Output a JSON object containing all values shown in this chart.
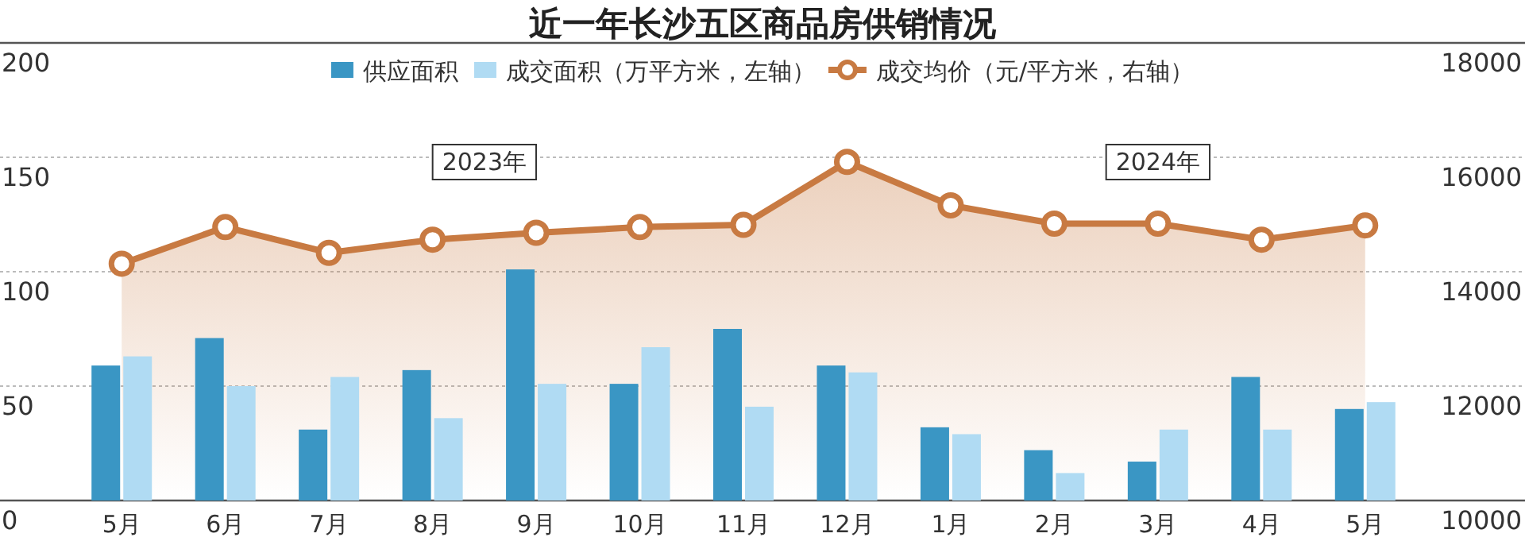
{
  "chart_data": {
    "type": "bar",
    "title": "近一年长沙五区商品房供销情况",
    "categories": [
      "5月",
      "6月",
      "7月",
      "8月",
      "9月",
      "10月",
      "11月",
      "12月",
      "1月",
      "2月",
      "3月",
      "4月",
      "5月"
    ],
    "series": [
      {
        "name": "供应面积",
        "color": "#3a96c4",
        "values": [
          59,
          71,
          31,
          57,
          101,
          51,
          75,
          59,
          32,
          22,
          17,
          54,
          40
        ]
      },
      {
        "name": "成交面积（万平方米，左轴）",
        "color": "#b0dbf3",
        "values": [
          63,
          50,
          54,
          36,
          51,
          67,
          41,
          56,
          29,
          12,
          31,
          31,
          43
        ]
      },
      {
        "name": "成交均价（元/平方米，右轴）",
        "type": "area",
        "axis": "y2",
        "color": "#c87a42",
        "values": [
          14140,
          14780,
          14330,
          14560,
          14680,
          14780,
          14820,
          15920,
          15160,
          14840,
          14840,
          14560,
          14810
        ]
      }
    ],
    "ylim": [
      0,
      200
    ],
    "yticks": [
      0,
      50,
      100,
      150,
      200
    ],
    "y2lim": [
      10000,
      18000
    ],
    "y2ticks": [
      10000,
      12000,
      14000,
      16000,
      18000
    ],
    "grid": "y",
    "legend": "top",
    "marker": "circle",
    "annotations": [
      "2023年",
      "2024年"
    ]
  }
}
